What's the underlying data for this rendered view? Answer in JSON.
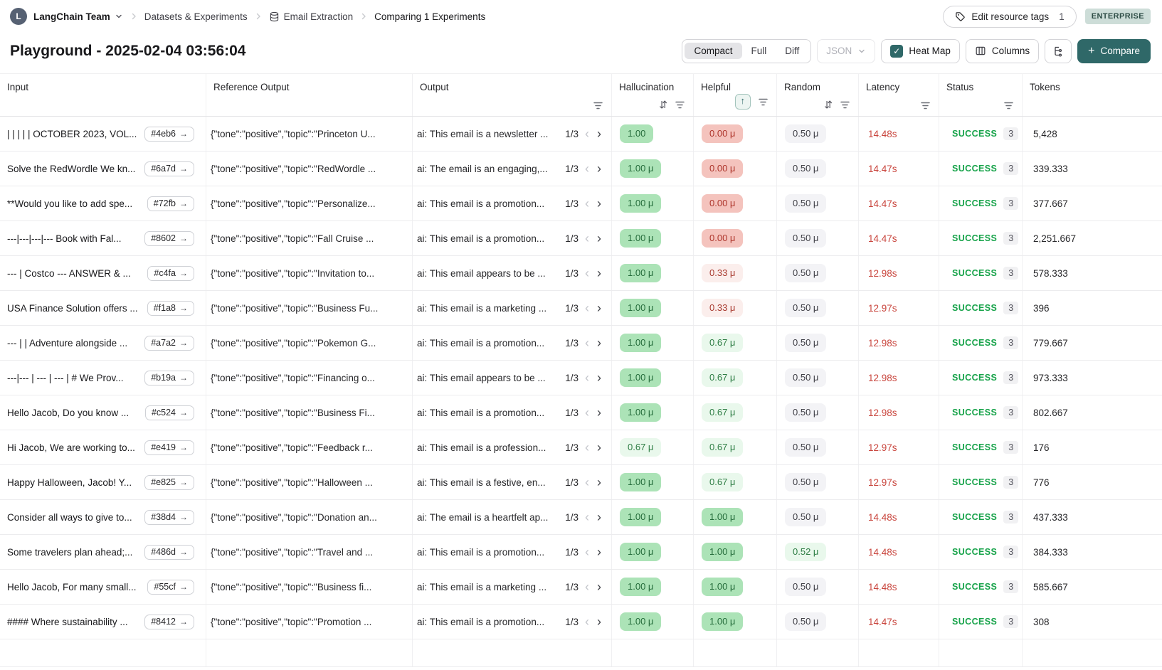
{
  "topbar": {
    "avatar_letter": "L",
    "team_name": "LangChain Team",
    "breadcrumbs": [
      "Datasets & Experiments",
      "Email Extraction",
      "Comparing 1 Experiments"
    ],
    "edit_tags": {
      "label": "Edit resource tags",
      "count": "1"
    },
    "plan_badge": "ENTERPRISE"
  },
  "toolbar": {
    "title": "Playground - 2025-02-04 03:56:04",
    "view_modes": [
      "Compact",
      "Full",
      "Diff"
    ],
    "active_view_mode": "Compact",
    "format_selector": "JSON",
    "heat_map": {
      "label": "Heat Map",
      "checked": true
    },
    "columns_label": "Columns",
    "compare_label": "Compare"
  },
  "icons": {
    "sort_both": "⇵",
    "sort_up": "↑",
    "link_arrow": "→",
    "prev": "‹",
    "next": "›",
    "check": "✓",
    "plus": "+"
  },
  "colors": {
    "accent_teal": "#2F6868",
    "heat_green_bg": "#ACE3B7",
    "heat_light_green_bg": "#E9F8EC",
    "heat_red_bg": "#F4C3BD",
    "heat_light_red_bg": "#FBEEEC",
    "neutral_badge_bg": "#F3F3F6",
    "latency_red": "#C9463E",
    "success_green": "#17A34A"
  },
  "table": {
    "columns": [
      {
        "label": "Input",
        "sort": "none",
        "filter": false
      },
      {
        "label": "Reference Output",
        "sort": "none",
        "filter": false
      },
      {
        "label": "Output",
        "sort": "none",
        "filter": true
      },
      {
        "label": "Hallucination",
        "sort": "both",
        "filter": true
      },
      {
        "label": "Helpful",
        "sort": "up-active",
        "filter": true
      },
      {
        "label": "Random",
        "sort": "both",
        "filter": true
      },
      {
        "label": "Latency",
        "sort": "none",
        "filter": true
      },
      {
        "label": "Status",
        "sort": "none",
        "filter": true
      },
      {
        "label": "Tokens",
        "sort": "none",
        "filter": false
      }
    ],
    "rows": [
      {
        "input": "| | | | | OCTOBER 2023, VOL...",
        "example_id": "#4eb6",
        "reference": "{\"tone\":\"positive\",\"topic\":\"Princeton U...",
        "output": "ai: This email is a newsletter ...",
        "page": "1/3",
        "hallucination": {
          "value": "1.00",
          "variant": "green"
        },
        "helpful": {
          "value": "0.00 μ",
          "variant": "red"
        },
        "random": {
          "value": "0.50 μ",
          "variant": "gray"
        },
        "latency": "14.48s",
        "status": "SUCCESS",
        "runs": "3",
        "tokens": "5,428"
      },
      {
        "input": "Solve the RedWordle We kn...",
        "example_id": "#6a7d",
        "reference": "{\"tone\":\"positive\",\"topic\":\"RedWordle ...",
        "output": "ai: The email is an engaging,...",
        "page": "1/3",
        "hallucination": {
          "value": "1.00 μ",
          "variant": "green"
        },
        "helpful": {
          "value": "0.00 μ",
          "variant": "red"
        },
        "random": {
          "value": "0.50 μ",
          "variant": "gray"
        },
        "latency": "14.47s",
        "status": "SUCCESS",
        "runs": "3",
        "tokens": "339.333"
      },
      {
        "input": "**Would you like to add spe...",
        "example_id": "#72fb",
        "reference": "{\"tone\":\"positive\",\"topic\":\"Personalize...",
        "output": "ai: This email is a promotion...",
        "page": "1/3",
        "hallucination": {
          "value": "1.00 μ",
          "variant": "green"
        },
        "helpful": {
          "value": "0.00 μ",
          "variant": "red"
        },
        "random": {
          "value": "0.50 μ",
          "variant": "gray"
        },
        "latency": "14.47s",
        "status": "SUCCESS",
        "runs": "3",
        "tokens": "377.667"
      },
      {
        "input": "---|---|---|--- Book with Fal...",
        "example_id": "#8602",
        "reference": "{\"tone\":\"positive\",\"topic\":\"Fall Cruise ...",
        "output": "ai: This email is a promotion...",
        "page": "1/3",
        "hallucination": {
          "value": "1.00 μ",
          "variant": "green"
        },
        "helpful": {
          "value": "0.00 μ",
          "variant": "red"
        },
        "random": {
          "value": "0.50 μ",
          "variant": "gray"
        },
        "latency": "14.47s",
        "status": "SUCCESS",
        "runs": "3",
        "tokens": "2,251.667"
      },
      {
        "input": "--- | Costco --- ANSWER & ...",
        "example_id": "#c4fa",
        "reference": "{\"tone\":\"positive\",\"topic\":\"Invitation to...",
        "output": "ai: This email appears to be ...",
        "page": "1/3",
        "hallucination": {
          "value": "1.00 μ",
          "variant": "green"
        },
        "helpful": {
          "value": "0.33 μ",
          "variant": "light-red"
        },
        "random": {
          "value": "0.50 μ",
          "variant": "gray"
        },
        "latency": "12.98s",
        "status": "SUCCESS",
        "runs": "3",
        "tokens": "578.333"
      },
      {
        "input": "USA Finance Solution offers ...",
        "example_id": "#f1a8",
        "reference": "{\"tone\":\"positive\",\"topic\":\"Business Fu...",
        "output": "ai: This email is a marketing ...",
        "page": "1/3",
        "hallucination": {
          "value": "1.00 μ",
          "variant": "green"
        },
        "helpful": {
          "value": "0.33 μ",
          "variant": "light-red"
        },
        "random": {
          "value": "0.50 μ",
          "variant": "gray"
        },
        "latency": "12.97s",
        "status": "SUCCESS",
        "runs": "3",
        "tokens": "396"
      },
      {
        "input": "--- | | Adventure alongside ...",
        "example_id": "#a7a2",
        "reference": "{\"tone\":\"positive\",\"topic\":\"Pokemon G...",
        "output": "ai: This email is a promotion...",
        "page": "1/3",
        "hallucination": {
          "value": "1.00 μ",
          "variant": "green"
        },
        "helpful": {
          "value": "0.67 μ",
          "variant": "light-green"
        },
        "random": {
          "value": "0.50 μ",
          "variant": "gray"
        },
        "latency": "12.98s",
        "status": "SUCCESS",
        "runs": "3",
        "tokens": "779.667"
      },
      {
        "input": "---|--- | --- | --- | # We Prov...",
        "example_id": "#b19a",
        "reference": "{\"tone\":\"positive\",\"topic\":\"Financing o...",
        "output": "ai: This email appears to be ...",
        "page": "1/3",
        "hallucination": {
          "value": "1.00 μ",
          "variant": "green"
        },
        "helpful": {
          "value": "0.67 μ",
          "variant": "light-green"
        },
        "random": {
          "value": "0.50 μ",
          "variant": "gray"
        },
        "latency": "12.98s",
        "status": "SUCCESS",
        "runs": "3",
        "tokens": "973.333"
      },
      {
        "input": "Hello Jacob, Do you know ...",
        "example_id": "#c524",
        "reference": "{\"tone\":\"positive\",\"topic\":\"Business Fi...",
        "output": "ai: This email is a promotion...",
        "page": "1/3",
        "hallucination": {
          "value": "1.00 μ",
          "variant": "green"
        },
        "helpful": {
          "value": "0.67 μ",
          "variant": "light-green"
        },
        "random": {
          "value": "0.50 μ",
          "variant": "gray"
        },
        "latency": "12.98s",
        "status": "SUCCESS",
        "runs": "3",
        "tokens": "802.667"
      },
      {
        "input": "Hi Jacob, We are working to...",
        "example_id": "#e419",
        "reference": "{\"tone\":\"positive\",\"topic\":\"Feedback r...",
        "output": "ai: This email is a profession...",
        "page": "1/3",
        "hallucination": {
          "value": "0.67 μ",
          "variant": "light-green"
        },
        "helpful": {
          "value": "0.67 μ",
          "variant": "light-green"
        },
        "random": {
          "value": "0.50 μ",
          "variant": "gray"
        },
        "latency": "12.97s",
        "status": "SUCCESS",
        "runs": "3",
        "tokens": "176"
      },
      {
        "input": "Happy Halloween, Jacob! Y...",
        "example_id": "#e825",
        "reference": "{\"tone\":\"positive\",\"topic\":\"Halloween ...",
        "output": "ai: This email is a festive, en...",
        "page": "1/3",
        "hallucination": {
          "value": "1.00 μ",
          "variant": "green"
        },
        "helpful": {
          "value": "0.67 μ",
          "variant": "light-green"
        },
        "random": {
          "value": "0.50 μ",
          "variant": "gray"
        },
        "latency": "12.97s",
        "status": "SUCCESS",
        "runs": "3",
        "tokens": "776"
      },
      {
        "input": "Consider all ways to give to...",
        "example_id": "#38d4",
        "reference": "{\"tone\":\"positive\",\"topic\":\"Donation an...",
        "output": "ai: The email is a heartfelt ap...",
        "page": "1/3",
        "hallucination": {
          "value": "1.00 μ",
          "variant": "green"
        },
        "helpful": {
          "value": "1.00 μ",
          "variant": "green"
        },
        "random": {
          "value": "0.50 μ",
          "variant": "gray"
        },
        "latency": "14.48s",
        "status": "SUCCESS",
        "runs": "3",
        "tokens": "437.333"
      },
      {
        "input": "Some travelers plan ahead;...",
        "example_id": "#486d",
        "reference": "{\"tone\":\"positive\",\"topic\":\"Travel and ...",
        "output": "ai: This email is a promotion...",
        "page": "1/3",
        "hallucination": {
          "value": "1.00 μ",
          "variant": "green"
        },
        "helpful": {
          "value": "1.00 μ",
          "variant": "green"
        },
        "random": {
          "value": "0.52 μ",
          "variant": "light-green"
        },
        "latency": "14.48s",
        "status": "SUCCESS",
        "runs": "3",
        "tokens": "384.333"
      },
      {
        "input": "Hello Jacob, For many small...",
        "example_id": "#55cf",
        "reference": "{\"tone\":\"positive\",\"topic\":\"Business fi...",
        "output": "ai: This email is a marketing ...",
        "page": "1/3",
        "hallucination": {
          "value": "1.00 μ",
          "variant": "green"
        },
        "helpful": {
          "value": "1.00 μ",
          "variant": "green"
        },
        "random": {
          "value": "0.50 μ",
          "variant": "gray"
        },
        "latency": "14.48s",
        "status": "SUCCESS",
        "runs": "3",
        "tokens": "585.667"
      },
      {
        "input": "#### Where sustainability ...",
        "example_id": "#8412",
        "reference": "{\"tone\":\"positive\",\"topic\":\"Promotion ...",
        "output": "ai: This email is a promotion...",
        "page": "1/3",
        "hallucination": {
          "value": "1.00 μ",
          "variant": "green"
        },
        "helpful": {
          "value": "1.00 μ",
          "variant": "green"
        },
        "random": {
          "value": "0.50 μ",
          "variant": "gray"
        },
        "latency": "14.47s",
        "status": "SUCCESS",
        "runs": "3",
        "tokens": "308"
      }
    ]
  }
}
